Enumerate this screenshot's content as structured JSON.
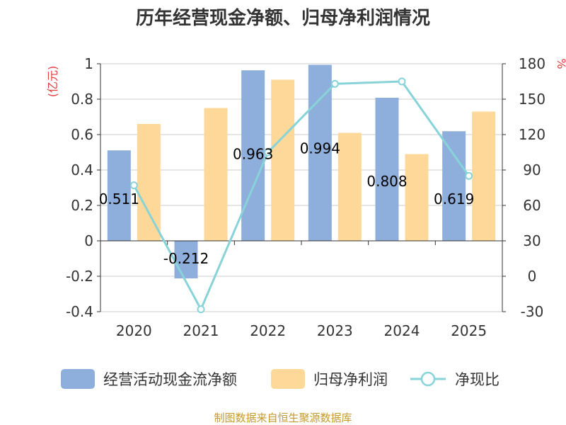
{
  "chart_data": {
    "type": "bar",
    "title": "历年经营现金净额、归母净利润情况",
    "categories": [
      "2020",
      "2021",
      "2022",
      "2023",
      "2024",
      "2025"
    ],
    "series": [
      {
        "name": "经营活动现金流净额",
        "kind": "bar",
        "axis": "left",
        "color": "#8eaedb",
        "values": [
          0.511,
          -0.212,
          0.963,
          0.994,
          0.808,
          0.619
        ],
        "labels": [
          "0.511",
          "-0.212",
          "0.963",
          "0.994",
          "0.808",
          "0.619"
        ]
      },
      {
        "name": "归母净利润",
        "kind": "bar",
        "axis": "left",
        "color": "#fed898",
        "values": [
          0.66,
          0.75,
          0.91,
          0.61,
          0.49,
          0.73
        ]
      },
      {
        "name": "净现比",
        "kind": "line",
        "axis": "right",
        "color": "#87d3d8",
        "values": [
          77,
          -28,
          105,
          163,
          165,
          85
        ]
      }
    ],
    "y_left": {
      "unit": "(亿元)",
      "min": -0.4,
      "max": 1,
      "ticks": [
        -0.4,
        -0.2,
        0,
        0.2,
        0.4,
        0.6,
        0.8,
        1
      ],
      "tick_labels": [
        "-0.4",
        "-0.2",
        "0",
        "0.2",
        "0.4",
        "0.6",
        "0.8",
        "1"
      ]
    },
    "y_right": {
      "unit": "%",
      "min": -30,
      "max": 180,
      "ticks": [
        -30,
        0,
        30,
        60,
        90,
        120,
        150,
        180
      ],
      "tick_labels": [
        "-30",
        "0",
        "30",
        "60",
        "90",
        "120",
        "150",
        "180"
      ]
    },
    "grid": true,
    "legend_position": "bottom"
  },
  "source_text": "制图数据来自恒生聚源数据库"
}
